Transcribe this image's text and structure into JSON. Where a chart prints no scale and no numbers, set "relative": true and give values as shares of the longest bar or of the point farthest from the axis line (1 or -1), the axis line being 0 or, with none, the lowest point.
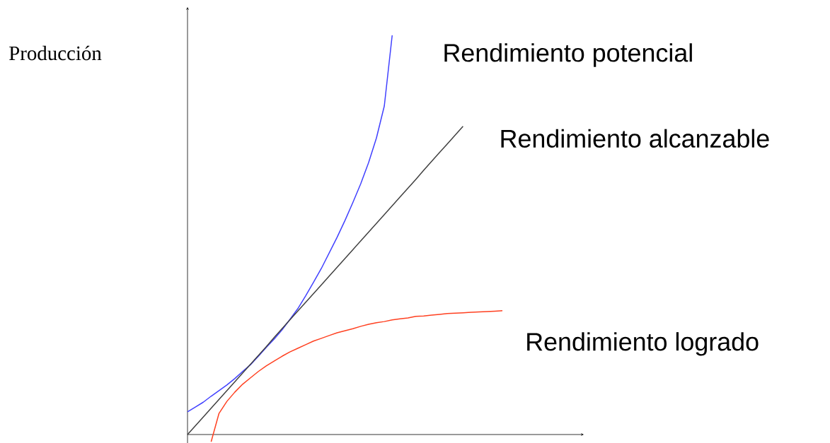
{
  "chart_data": {
    "type": "line",
    "relative": true,
    "ylabel": "Producción",
    "categories": [
      null,
      null,
      null,
      null,
      null,
      null,
      null,
      null,
      null,
      null,
      null,
      null,
      null,
      null,
      null,
      null,
      null,
      null,
      null,
      null,
      null,
      null,
      null,
      null,
      null,
      null,
      null,
      null,
      null,
      null,
      null,
      null,
      null,
      null,
      null,
      null,
      null,
      null,
      null,
      null,
      null
    ],
    "series": [
      {
        "name": "Rendimiento potencial",
        "color": "#4040ff",
        "values": [
          0.057,
          0.069,
          0.081,
          0.096,
          0.11,
          0.124,
          0.14,
          0.158,
          0.175,
          0.196,
          0.218,
          0.239,
          0.262,
          0.288,
          0.315,
          0.347,
          0.381,
          0.416,
          0.455,
          0.494,
          0.536,
          0.581,
          0.628,
          0.681,
          0.743,
          0.823,
          1,
          null,
          null,
          null,
          null,
          null,
          null,
          null,
          null,
          null,
          null,
          null,
          null,
          null,
          null
        ]
      },
      {
        "name": "Rendimiento alcanzable",
        "color": "#404040",
        "values": [
          0,
          0.022,
          0.044,
          0.066,
          0.088,
          0.11,
          0.132,
          0.154,
          0.176,
          0.198,
          0.22,
          0.243,
          0.265,
          0.287,
          0.309,
          0.331,
          0.353,
          0.375,
          0.397,
          0.419,
          0.441,
          0.463,
          0.485,
          0.507,
          0.529,
          0.551,
          0.573,
          0.595,
          0.617,
          0.639,
          0.662,
          0.684,
          0.706,
          0.728,
          0.75,
          0.772,
          null,
          null,
          null,
          null,
          null
        ]
      },
      {
        "name": "Rendimiento logrado",
        "color": "#ff4020",
        "values": [
          null,
          null,
          null,
          -0.018,
          0.053,
          0.083,
          0.106,
          0.126,
          0.142,
          0.158,
          0.172,
          0.184,
          0.196,
          0.207,
          0.216,
          0.225,
          0.234,
          0.241,
          0.248,
          0.255,
          0.26,
          0.265,
          0.271,
          0.276,
          0.28,
          0.283,
          0.287,
          0.29,
          0.292,
          0.296,
          0.297,
          0.299,
          0.301,
          0.303,
          0.304,
          0.305,
          0.306,
          0.307,
          0.308,
          0.309,
          0.31
        ]
      }
    ]
  }
}
